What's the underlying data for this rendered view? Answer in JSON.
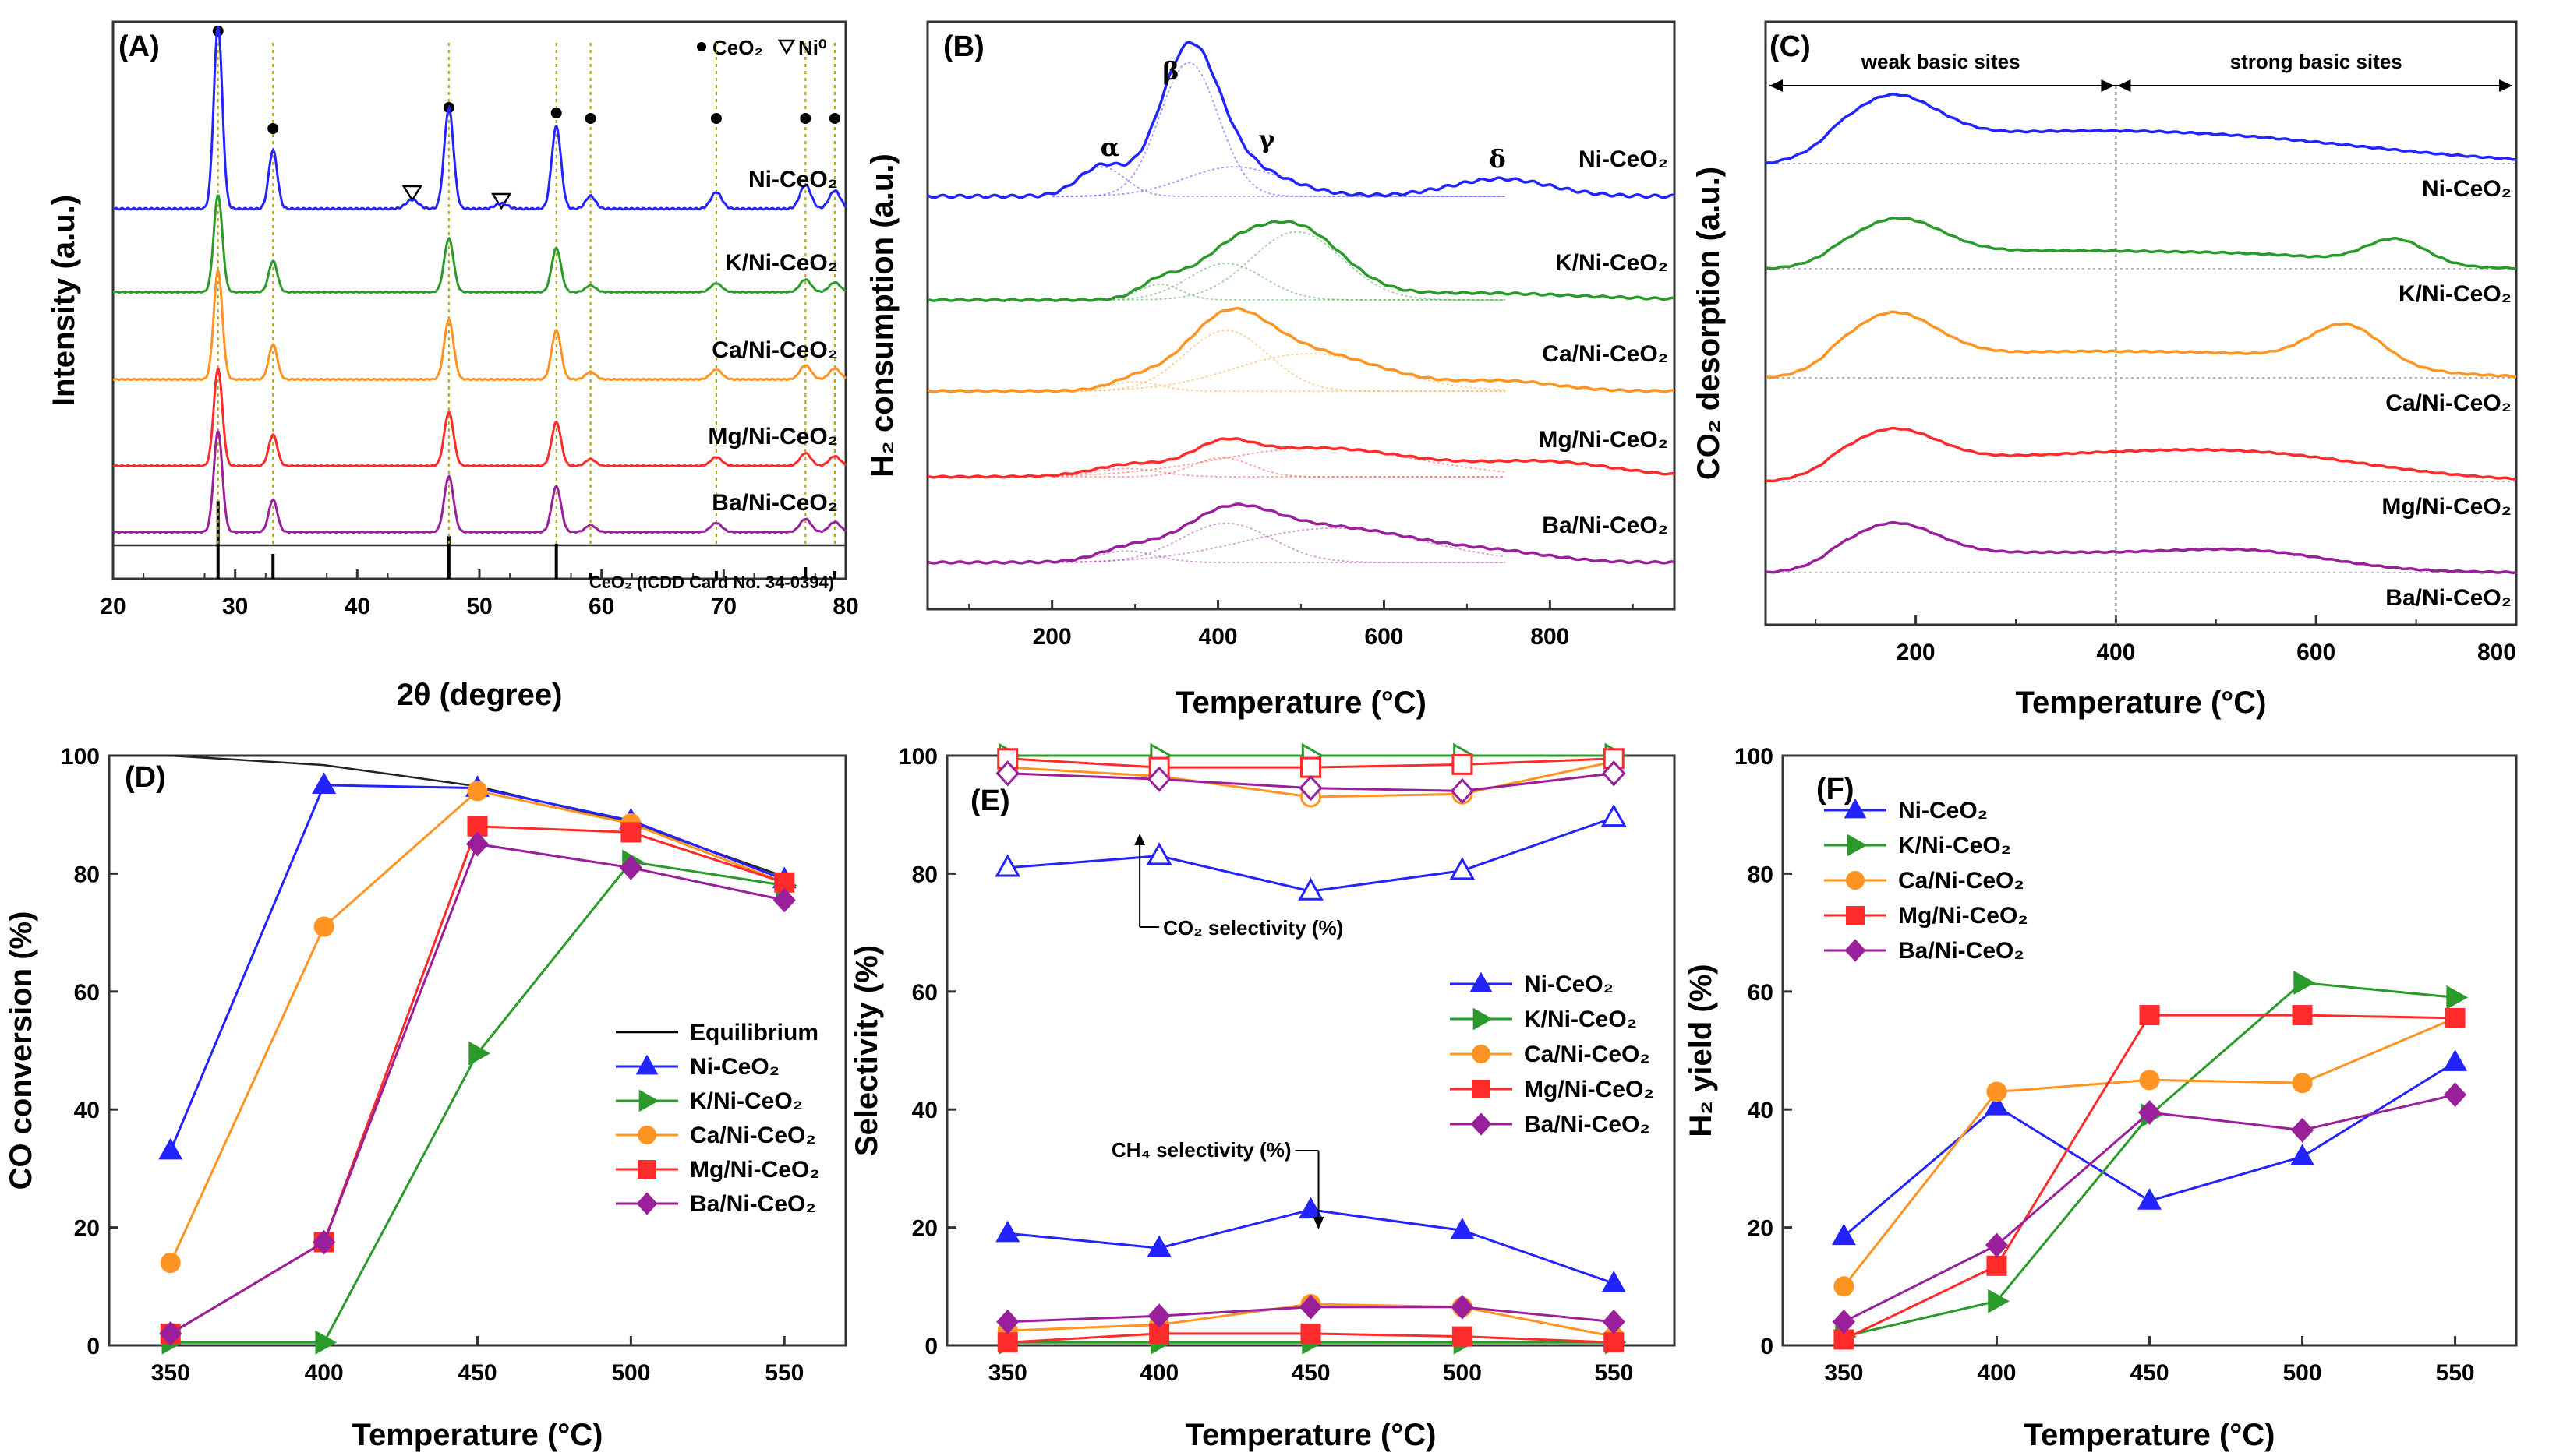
{
  "chart_data": [
    {
      "id": "A",
      "type": "line",
      "panel": "(A)",
      "xlabel": "2θ (degree)",
      "ylabel": "Intensity (a.u.)",
      "xlim": [
        20,
        80
      ],
      "xticks": [
        20,
        30,
        40,
        50,
        60,
        70,
        80
      ],
      "legend_ceo2": "CeO₂",
      "legend_ni": "Ni⁰",
      "reference_label": "CeO₂ (ICDD Card No. 34-0394)",
      "reference_peaks": [
        28.6,
        33.1,
        47.5,
        56.3,
        59.1,
        69.4,
        76.7,
        79.1
      ],
      "ceo2_marker_positions": [
        28.6,
        33.1,
        47.5,
        56.3,
        59.1,
        69.4,
        76.7,
        79.1
      ],
      "ni_marker_positions": [
        44.5,
        51.8
      ],
      "series": [
        {
          "name": "Ni-CeO₂",
          "color": "#2323ff"
        },
        {
          "name": "K/Ni-CeO₂",
          "color": "#2a9a2a"
        },
        {
          "name": "Ca/Ni-CeO₂",
          "color": "#ff9422"
        },
        {
          "name": "Mg/Ni-CeO₂",
          "color": "#ff2a2a"
        },
        {
          "name": "Ba/Ni-CeO₂",
          "color": "#9a1f9a"
        }
      ]
    },
    {
      "id": "B",
      "type": "line",
      "panel": "(B)",
      "xlabel": "Temperature (°C)",
      "ylabel": "H₂ consumption (a.u.)",
      "xlim": [
        50,
        950
      ],
      "xticks": [
        200,
        400,
        600,
        800
      ],
      "peak_labels": [
        "α",
        "β",
        "γ",
        "δ"
      ],
      "series": [
        {
          "name": "Ni-CeO₂",
          "color": "#2323ff"
        },
        {
          "name": "K/Ni-CeO₂",
          "color": "#2a9a2a"
        },
        {
          "name": "Ca/Ni-CeO₂",
          "color": "#ff9422"
        },
        {
          "name": "Mg/Ni-CeO₂",
          "color": "#ff2a2a"
        },
        {
          "name": "Ba/Ni-CeO₂",
          "color": "#9a1f9a"
        }
      ]
    },
    {
      "id": "C",
      "type": "line",
      "panel": "(C)",
      "xlabel": "Temperature (°C)",
      "ylabel": "CO₂ desorption (a.u.)",
      "xlim": [
        50,
        800
      ],
      "xticks": [
        200,
        400,
        600,
        800
      ],
      "region_weak": "weak basic sites",
      "region_strong": "strong basic sites",
      "region_boundary": 400,
      "series": [
        {
          "name": "Ni-CeO₂",
          "color": "#2323ff"
        },
        {
          "name": "K/Ni-CeO₂",
          "color": "#2a9a2a"
        },
        {
          "name": "Ca/Ni-CeO₂",
          "color": "#ff9422"
        },
        {
          "name": "Mg/Ni-CeO₂",
          "color": "#ff2a2a"
        },
        {
          "name": "Ba/Ni-CeO₂",
          "color": "#9a1f9a"
        }
      ]
    },
    {
      "id": "D",
      "type": "line",
      "panel": "(D)",
      "xlabel": "Temperature (°C)",
      "ylabel": "CO conversion (%)",
      "categories": [
        350,
        400,
        450,
        500,
        550
      ],
      "ylim": [
        0,
        100
      ],
      "yticks": [
        0,
        20,
        40,
        60,
        80,
        100
      ],
      "equilibrium": {
        "name": "Equilibrium",
        "x": [
          350,
          400,
          450,
          500,
          550
        ],
        "values": [
          100,
          98.4,
          94.8,
          88.6,
          79.5
        ]
      },
      "series": [
        {
          "name": "Ni-CeO₂",
          "color": "#2323ff",
          "marker": "triangle-up",
          "values": [
            33,
            95,
            94.5,
            89,
            79
          ]
        },
        {
          "name": "K/Ni-CeO₂",
          "color": "#2a9a2a",
          "marker": "triangle-right",
          "values": [
            0.5,
            0.5,
            49.5,
            82,
            78
          ]
        },
        {
          "name": "Ca/Ni-CeO₂",
          "color": "#ff9422",
          "marker": "circle",
          "values": [
            14,
            71,
            94,
            88.5,
            78.5
          ]
        },
        {
          "name": "Mg/Ni-CeO₂",
          "color": "#ff2a2a",
          "marker": "square",
          "values": [
            2,
            17.5,
            88,
            87,
            78.5
          ]
        },
        {
          "name": "Ba/Ni-CeO₂",
          "color": "#9a1f9a",
          "marker": "diamond",
          "values": [
            2,
            17.5,
            85,
            81,
            75.5
          ]
        }
      ]
    },
    {
      "id": "E",
      "type": "line",
      "panel": "(E)",
      "xlabel": "Temperature (°C)",
      "ylabel": "Selectivity (%)",
      "categories": [
        350,
        400,
        450,
        500,
        550
      ],
      "ylim": [
        0,
        100
      ],
      "yticks": [
        0,
        20,
        40,
        60,
        80,
        100
      ],
      "co2_annotation": "CO₂ selectivity (%)",
      "ch4_annotation": "CH₄ selectivity (%)",
      "series": [
        {
          "name": "Ni-CeO₂",
          "color": "#2323ff",
          "marker": "triangle-up",
          "co2": [
            81,
            83,
            77,
            80.5,
            89.5
          ],
          "ch4": [
            19,
            16.5,
            23,
            19.5,
            10.5
          ]
        },
        {
          "name": "K/Ni-CeO₂",
          "color": "#2a9a2a",
          "marker": "triangle-right",
          "co2": [
            100,
            100,
            100,
            100,
            100
          ],
          "ch4": [
            0.5,
            0.5,
            0.5,
            0.5,
            0.5
          ]
        },
        {
          "name": "Ca/Ni-CeO₂",
          "color": "#ff9422",
          "marker": "circle",
          "co2": [
            98,
            96.5,
            93,
            93.5,
            99
          ],
          "ch4": [
            2.5,
            3.5,
            7,
            6.5,
            1.5
          ]
        },
        {
          "name": "Mg/Ni-CeO₂",
          "color": "#ff2a2a",
          "marker": "square",
          "co2": [
            99.5,
            98,
            98,
            98.5,
            99.5
          ],
          "ch4": [
            0.5,
            2,
            2,
            1.5,
            0.5
          ]
        },
        {
          "name": "Ba/Ni-CeO₂",
          "color": "#9a1f9a",
          "marker": "diamond",
          "co2": [
            97,
            96,
            94.5,
            94,
            97
          ],
          "ch4": [
            4,
            5,
            6.5,
            6.5,
            4
          ]
        }
      ]
    },
    {
      "id": "F",
      "type": "line",
      "panel": "(F)",
      "xlabel": "Temperature (°C)",
      "ylabel": "H₂ yield (%)",
      "categories": [
        350,
        400,
        450,
        500,
        550
      ],
      "ylim": [
        0,
        100
      ],
      "yticks": [
        0,
        20,
        40,
        60,
        80,
        100
      ],
      "series": [
        {
          "name": "Ni-CeO₂",
          "color": "#2323ff",
          "marker": "triangle-up",
          "values": [
            18.5,
            40.5,
            24.5,
            32,
            48
          ]
        },
        {
          "name": "K/Ni-CeO₂",
          "color": "#2a9a2a",
          "marker": "triangle-right",
          "values": [
            1.5,
            7.5,
            39,
            61.5,
            59
          ]
        },
        {
          "name": "Ca/Ni-CeO₂",
          "color": "#ff9422",
          "marker": "circle",
          "values": [
            10,
            43,
            45,
            44.5,
            55.5
          ]
        },
        {
          "name": "Mg/Ni-CeO₂",
          "color": "#ff2a2a",
          "marker": "square",
          "values": [
            1,
            13.5,
            56,
            56,
            55.5
          ]
        },
        {
          "name": "Ba/Ni-CeO₂",
          "color": "#9a1f9a",
          "marker": "diamond",
          "values": [
            4,
            17,
            39.5,
            36.5,
            42.5
          ]
        }
      ]
    }
  ]
}
